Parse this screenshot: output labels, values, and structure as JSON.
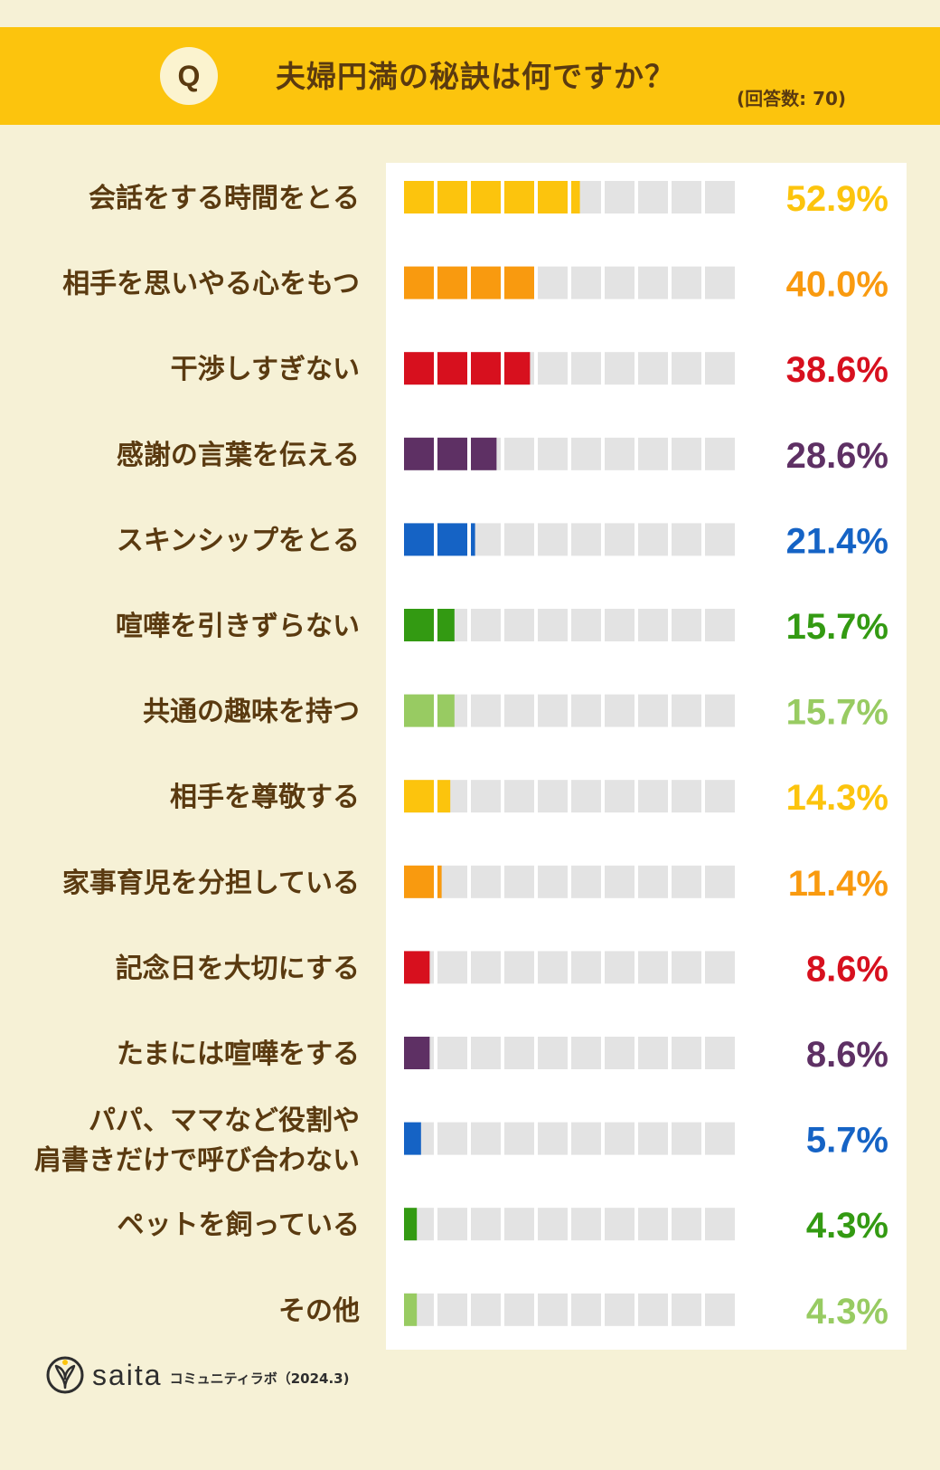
{
  "header": {
    "badge": "Q",
    "question": "夫婦円満の秘訣は何ですか？",
    "respondents": "(回答数: 70)"
  },
  "chart_data": {
    "type": "bar",
    "title": "夫婦円満の秘訣は何ですか？",
    "note": "(回答数: 70)",
    "unit": "%",
    "xlim": [
      0,
      100
    ],
    "segments": 10,
    "categories": [
      [
        "会話をする時間をとる"
      ],
      [
        "相手を思いやる心をもつ"
      ],
      [
        "干渉しすぎない"
      ],
      [
        "感謝の言葉を伝える"
      ],
      [
        "スキンシップをとる"
      ],
      [
        "喧嘩を引きずらない"
      ],
      [
        "共通の趣味を持つ"
      ],
      [
        "相手を尊敬する"
      ],
      [
        "家事育児を分担している"
      ],
      [
        "記念日を大切にする"
      ],
      [
        "たまには喧嘩をする"
      ],
      [
        "パパ、ママなど役割や",
        "肩書きだけで呼び合わない"
      ],
      [
        "ペットを飼っている"
      ],
      [
        "その他"
      ]
    ],
    "values": [
      52.9,
      40.0,
      38.6,
      28.6,
      21.4,
      15.7,
      15.7,
      14.3,
      11.4,
      8.6,
      8.6,
      5.7,
      4.3,
      4.3
    ],
    "value_labels": [
      "52.9%",
      "40.0%",
      "38.6%",
      "28.6%",
      "21.4%",
      "15.7%",
      "15.7%",
      "14.3%",
      "11.4%",
      "8.6%",
      "8.6%",
      "5.7%",
      "4.3%",
      "4.3%"
    ],
    "colors": [
      "#fcc40d",
      "#f99a0f",
      "#d7101e",
      "#5e3064",
      "#1563c5",
      "#339a12",
      "#98cb62",
      "#fcc40d",
      "#f99a0f",
      "#d7101e",
      "#5e3064",
      "#1563c5",
      "#339a12",
      "#98cb62"
    ],
    "empty_color": "#e3e3e3",
    "grid": false,
    "legend": "none"
  },
  "footer": {
    "brand": "saita",
    "sub": "コミュニティラボ（2024.3)"
  }
}
